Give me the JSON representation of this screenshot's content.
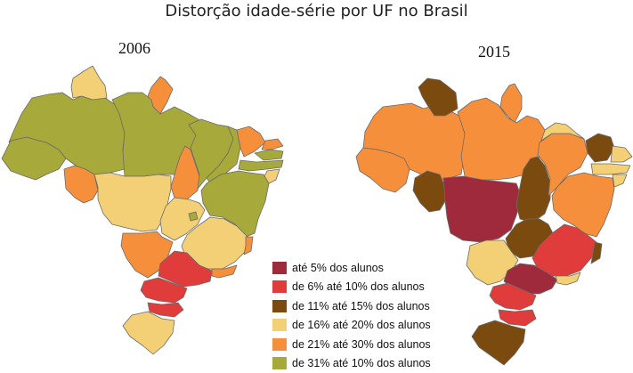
{
  "title": "Distorção idade-série por UF no Brasil",
  "maps": [
    {
      "year": "2006"
    },
    {
      "year": "2015"
    }
  ],
  "legend": [
    {
      "label": "até 5% dos alunos",
      "color": "#9e2a3c"
    },
    {
      "label": "de 6% até 10% dos alunos",
      "color": "#e03c3c"
    },
    {
      "label": "de 11% até 15% dos alunos",
      "color": "#7a4a0e"
    },
    {
      "label": "de 16% até 20% dos alunos",
      "color": "#f3cf76"
    },
    {
      "label": "de 21% até 30% dos alunos",
      "color": "#f58f3c"
    },
    {
      "label": "de 31% até 10% dos alunos",
      "color": "#a7a93a"
    }
  ]
}
